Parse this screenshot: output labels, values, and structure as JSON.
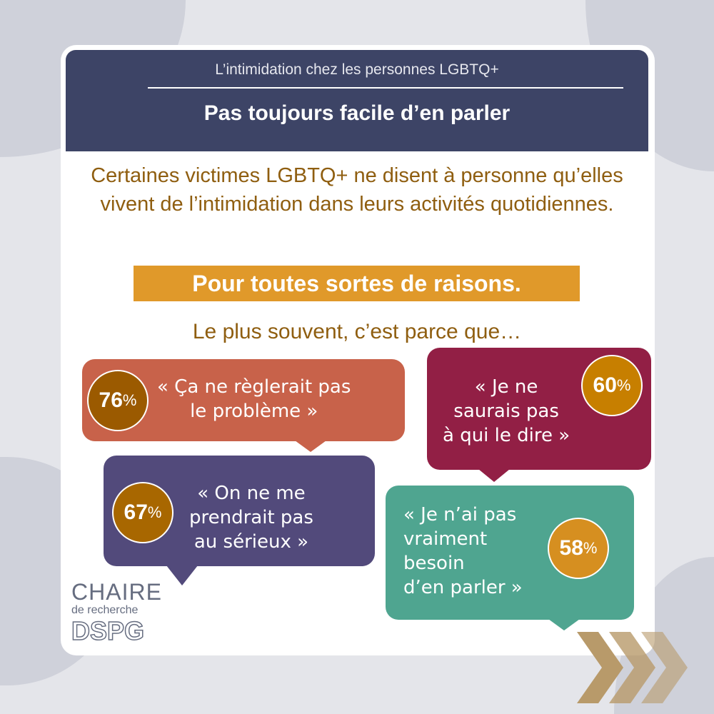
{
  "header": {
    "subtitle": "L’intimidation chez les personnes LGBTQ+",
    "title": "Pas toujours facile d’en parler"
  },
  "intro": "Certaines victimes LGBTQ+ ne disent à personne qu’elles vivent de l’intimidation dans leurs activités quotidiennes.",
  "banner": "Pour toutes sortes de raisons.",
  "lead": "Le plus souvent, c’est parce que…",
  "reasons": [
    {
      "percent": "76",
      "quote": "« Ça ne règlerait pas\nle problème »",
      "color": "#c8624a",
      "circle_color": "#9b5a00"
    },
    {
      "percent": "60",
      "quote": "« Je ne\nsaurais pas\nà qui le dire »",
      "color": "#921f45",
      "circle_color": "#c77f00"
    },
    {
      "percent": "67",
      "quote": "« On ne me\nprendrait pas\nau sérieux »",
      "color": "#524a7b",
      "circle_color": "#a86700"
    },
    {
      "percent": "58",
      "quote": "« Je n’ai pas\nvraiment\nbesoin\nd’en parler »",
      "color": "#4fa590",
      "circle_color": "#d68f20"
    }
  ],
  "percent_sign": "%",
  "logo": {
    "line1": "CHAIRE",
    "line2": "de recherche",
    "line3": "DSPG"
  }
}
